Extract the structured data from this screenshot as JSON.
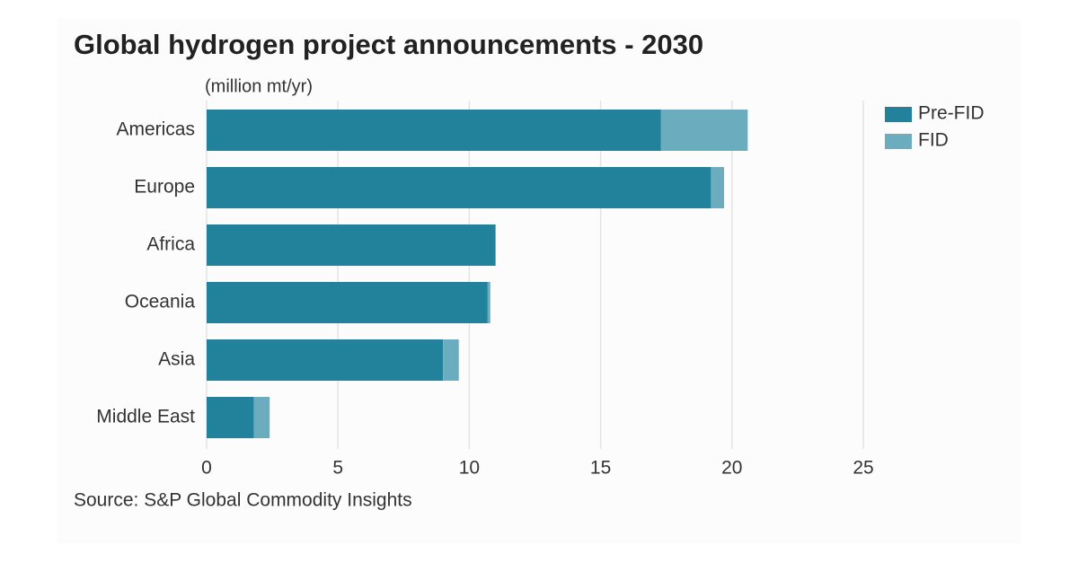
{
  "chart_data": {
    "type": "stacked-barh",
    "title": "Global hydrogen project announcements - 2030",
    "subtitle": "(million mt/yr)",
    "source": "Source: S&P Global Commodity Insights",
    "categories": [
      "Americas",
      "Europe",
      "Africa",
      "Oceania",
      "Asia",
      "Middle East"
    ],
    "series": [
      {
        "name": "Pre-FID",
        "color": "#23829b",
        "values": [
          17.3,
          19.2,
          11.0,
          10.7,
          9.0,
          1.8
        ]
      },
      {
        "name": "FID",
        "color": "#6badbe",
        "values": [
          3.3,
          0.5,
          0,
          0.1,
          0.6,
          0.6
        ]
      }
    ],
    "xlim": [
      0,
      25
    ],
    "xticks": [
      0,
      5,
      10,
      15,
      20,
      25
    ],
    "grid": true,
    "legend": "upper right"
  }
}
